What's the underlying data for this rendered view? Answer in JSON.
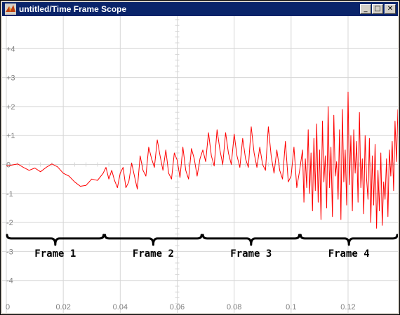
{
  "window": {
    "title": "untitled/Time Frame Scope",
    "buttons": {
      "minimize_glyph": "_",
      "maximize_glyph": "□",
      "close_glyph": "✕"
    }
  },
  "colors": {
    "trace": "#ff0000",
    "grid": "#d6d6d6",
    "axis_text": "#808080",
    "title_bar": "#0a246a"
  },
  "chart_data": {
    "type": "line",
    "title": "",
    "xlabel": "",
    "ylabel": "",
    "xlim": [
      0,
      0.1375
    ],
    "ylim": [
      -5,
      5
    ],
    "grid": true,
    "x_ticks": [
      {
        "value": 0,
        "label": "0"
      },
      {
        "value": 0.02,
        "label": "0.02"
      },
      {
        "value": 0.04,
        "label": "0.04"
      },
      {
        "value": 0.06,
        "label": "0.06"
      },
      {
        "value": 0.08,
        "label": "0.08"
      },
      {
        "value": 0.1,
        "label": "0.1"
      },
      {
        "value": 0.12,
        "label": "0.12"
      }
    ],
    "y_ticks": [
      {
        "value": 4,
        "label": "+4"
      },
      {
        "value": 3,
        "label": "+3"
      },
      {
        "value": 2,
        "label": "+2"
      },
      {
        "value": 1,
        "label": "+1"
      },
      {
        "value": 0,
        "label": "0"
      },
      {
        "value": -1,
        "label": "-1"
      },
      {
        "value": -2,
        "label": "-2"
      },
      {
        "value": -3,
        "label": "-3"
      },
      {
        "value": -4,
        "label": "-4"
      }
    ],
    "frames": [
      {
        "label": "Frame 1",
        "start": 0,
        "end": 0.0344
      },
      {
        "label": "Frame 2",
        "start": 0.0344,
        "end": 0.0688
      },
      {
        "label": "Frame 3",
        "start": 0.0688,
        "end": 0.1031
      },
      {
        "label": "Frame 4",
        "start": 0.1031,
        "end": 0.1375
      }
    ],
    "frame_brace_y": -2.55,
    "series": [
      {
        "values": [
          [
            0.0,
            -0.05
          ],
          [
            0.002,
            -0.02
          ],
          [
            0.004,
            0.02
          ],
          [
            0.006,
            -0.1
          ],
          [
            0.008,
            -0.2
          ],
          [
            0.01,
            -0.12
          ],
          [
            0.012,
            -0.25
          ],
          [
            0.014,
            -0.1
          ],
          [
            0.016,
            0.02
          ],
          [
            0.018,
            -0.08
          ],
          [
            0.02,
            -0.3
          ],
          [
            0.022,
            -0.4
          ],
          [
            0.024,
            -0.6
          ],
          [
            0.026,
            -0.75
          ],
          [
            0.028,
            -0.72
          ],
          [
            0.03,
            -0.5
          ],
          [
            0.032,
            -0.55
          ],
          [
            0.034,
            -0.3
          ],
          [
            0.035,
            -0.1
          ],
          [
            0.036,
            -0.5
          ],
          [
            0.037,
            -0.2
          ],
          [
            0.038,
            -0.55
          ],
          [
            0.039,
            -0.8
          ],
          [
            0.04,
            -0.3
          ],
          [
            0.041,
            -0.1
          ],
          [
            0.042,
            -0.8
          ],
          [
            0.043,
            -0.6
          ],
          [
            0.044,
            0.05
          ],
          [
            0.045,
            -0.4
          ],
          [
            0.046,
            -0.85
          ],
          [
            0.047,
            0.3
          ],
          [
            0.048,
            -0.2
          ],
          [
            0.049,
            -0.4
          ],
          [
            0.05,
            0.6
          ],
          [
            0.051,
            0.2
          ],
          [
            0.052,
            -0.1
          ],
          [
            0.053,
            0.85
          ],
          [
            0.054,
            0.3
          ],
          [
            0.055,
            -0.2
          ],
          [
            0.056,
            0.5
          ],
          [
            0.057,
            -0.3
          ],
          [
            0.058,
            -0.5
          ],
          [
            0.059,
            0.4
          ],
          [
            0.06,
            0.15
          ],
          [
            0.061,
            -0.45
          ],
          [
            0.062,
            0.6
          ],
          [
            0.063,
            -0.2
          ],
          [
            0.064,
            -0.5
          ],
          [
            0.065,
            0.55
          ],
          [
            0.066,
            0.2
          ],
          [
            0.067,
            -0.4
          ],
          [
            0.068,
            0.2
          ],
          [
            0.069,
            0.5
          ],
          [
            0.07,
            0.1
          ],
          [
            0.071,
            1.1
          ],
          [
            0.072,
            0.3
          ],
          [
            0.073,
            -0.05
          ],
          [
            0.074,
            1.2
          ],
          [
            0.075,
            0.5
          ],
          [
            0.076,
            0.0
          ],
          [
            0.077,
            1.1
          ],
          [
            0.078,
            0.4
          ],
          [
            0.079,
            0.0
          ],
          [
            0.08,
            1.05
          ],
          [
            0.081,
            0.3
          ],
          [
            0.082,
            -0.1
          ],
          [
            0.083,
            0.9
          ],
          [
            0.084,
            0.2
          ],
          [
            0.085,
            -0.1
          ],
          [
            0.086,
            1.3
          ],
          [
            0.087,
            0.4
          ],
          [
            0.088,
            -0.1
          ],
          [
            0.089,
            0.6
          ],
          [
            0.09,
            0.0
          ],
          [
            0.091,
            -0.2
          ],
          [
            0.092,
            1.3
          ],
          [
            0.093,
            0.3
          ],
          [
            0.094,
            -0.3
          ],
          [
            0.095,
            0.5
          ],
          [
            0.096,
            -0.2
          ],
          [
            0.097,
            -0.5
          ],
          [
            0.098,
            0.8
          ],
          [
            0.099,
            -0.6
          ],
          [
            0.1,
            -0.4
          ],
          [
            0.101,
            0.6
          ],
          [
            0.102,
            -0.8
          ],
          [
            0.103,
            -0.2
          ],
          [
            0.104,
            0.5
          ],
          [
            0.1045,
            -1.3
          ],
          [
            0.105,
            0.2
          ],
          [
            0.1055,
            -0.8
          ],
          [
            0.106,
            1.2
          ],
          [
            0.1065,
            -1.0
          ],
          [
            0.107,
            0.4
          ],
          [
            0.1075,
            -1.6
          ],
          [
            0.108,
            0.9
          ],
          [
            0.1085,
            -0.9
          ],
          [
            0.109,
            1.4
          ],
          [
            0.1095,
            -1.3
          ],
          [
            0.11,
            0.5
          ],
          [
            0.1105,
            -1.9
          ],
          [
            0.111,
            1.5
          ],
          [
            0.1115,
            -0.6
          ],
          [
            0.112,
            0.3
          ],
          [
            0.1125,
            -1.5
          ],
          [
            0.113,
            2.0
          ],
          [
            0.1135,
            -0.8
          ],
          [
            0.114,
            0.6
          ],
          [
            0.1145,
            -1.8
          ],
          [
            0.115,
            1.7
          ],
          [
            0.1155,
            -0.4
          ],
          [
            0.116,
            0.1
          ],
          [
            0.1165,
            -1.2
          ],
          [
            0.117,
            1.2
          ],
          [
            0.1175,
            -1.9
          ],
          [
            0.118,
            1.9
          ],
          [
            0.1185,
            -0.6
          ],
          [
            0.119,
            0.5
          ],
          [
            0.1195,
            -1.4
          ],
          [
            0.12,
            2.5
          ],
          [
            0.1205,
            -0.7
          ],
          [
            0.121,
            1.0
          ],
          [
            0.1215,
            -1.6
          ],
          [
            0.122,
            1.2
          ],
          [
            0.1225,
            -0.3
          ],
          [
            0.123,
            0.8
          ],
          [
            0.1235,
            -1.3
          ],
          [
            0.124,
            1.8
          ],
          [
            0.1245,
            -0.8
          ],
          [
            0.125,
            0.2
          ],
          [
            0.1255,
            -1.7
          ],
          [
            0.126,
            1.0
          ],
          [
            0.1265,
            -0.5
          ],
          [
            0.127,
            -1.2
          ],
          [
            0.1275,
            0.9
          ],
          [
            0.128,
            -2.0
          ],
          [
            0.1285,
            0.3
          ],
          [
            0.129,
            -1.4
          ],
          [
            0.1295,
            0.7
          ],
          [
            0.13,
            -2.2
          ],
          [
            0.1305,
            -0.2
          ],
          [
            0.131,
            -1.6
          ],
          [
            0.1315,
            0.4
          ],
          [
            0.132,
            -2.1
          ],
          [
            0.1325,
            -0.6
          ],
          [
            0.133,
            -1.2
          ],
          [
            0.1335,
            0.2
          ],
          [
            0.134,
            -1.8
          ],
          [
            0.1345,
            0.5
          ],
          [
            0.135,
            -0.4
          ],
          [
            0.1355,
            0.8
          ],
          [
            0.136,
            -0.9
          ],
          [
            0.1365,
            1.5
          ],
          [
            0.137,
            0.1
          ],
          [
            0.1375,
            1.9
          ]
        ]
      }
    ]
  }
}
